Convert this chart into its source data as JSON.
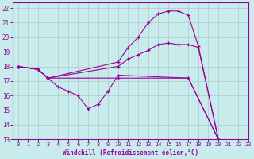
{
  "background_color": "#c8ecec",
  "line_color": "#990099",
  "grid_color": "#b0c8c8",
  "xlabel": "Windchill (Refroidissement éolien,°C)",
  "xlim": [
    -0.5,
    23
  ],
  "ylim": [
    13,
    22.4
  ],
  "yticks": [
    13,
    14,
    15,
    16,
    17,
    18,
    19,
    20,
    21,
    22
  ],
  "xticks": [
    0,
    1,
    2,
    3,
    4,
    5,
    6,
    7,
    8,
    9,
    10,
    11,
    12,
    13,
    14,
    15,
    16,
    17,
    18,
    19,
    20,
    21,
    22,
    23
  ],
  "lines": [
    {
      "x": [
        0,
        2,
        3,
        10,
        11,
        12,
        13,
        14,
        15,
        16,
        17,
        18,
        20
      ],
      "y": [
        18,
        17.8,
        17.2,
        18.3,
        19.3,
        20.0,
        21.0,
        21.6,
        21.8,
        21.8,
        21.5,
        19.4,
        13.0
      ]
    },
    {
      "x": [
        0,
        2,
        3,
        10,
        11,
        12,
        13,
        14,
        15,
        16,
        17,
        18,
        20
      ],
      "y": [
        18,
        17.8,
        17.2,
        18.0,
        18.5,
        18.8,
        19.1,
        19.5,
        19.6,
        19.5,
        19.5,
        19.3,
        13.0
      ]
    },
    {
      "x": [
        0,
        2,
        3,
        4,
        5,
        6,
        7,
        8,
        9,
        10,
        17,
        20
      ],
      "y": [
        18,
        17.8,
        17.2,
        16.6,
        16.3,
        16.0,
        15.1,
        15.4,
        16.3,
        17.4,
        17.2,
        13.0
      ]
    },
    {
      "x": [
        0,
        2,
        3,
        10,
        17,
        20
      ],
      "y": [
        18,
        17.8,
        17.2,
        17.2,
        17.2,
        13.0
      ]
    }
  ]
}
